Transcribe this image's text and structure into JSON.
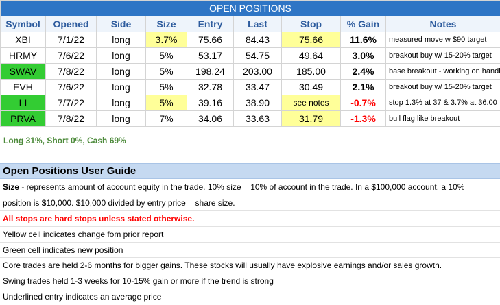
{
  "title": "OPEN POSITIONS",
  "headers": [
    "Symbol",
    "Opened",
    "Side",
    "Size",
    "Entry",
    "Last",
    "Stop",
    "% Gain",
    "Notes"
  ],
  "rows": [
    {
      "symbol": "XBI",
      "opened": "7/1/22",
      "side": "long",
      "size": "3.7%",
      "entry": "75.66",
      "last": "84.43",
      "stop": "75.66",
      "gain": "11.6%",
      "notes": "measured move w $90 target",
      "symbol_green": false,
      "size_yellow": true,
      "stop_yellow": true,
      "negative": false
    },
    {
      "symbol": "HRMY",
      "opened": "7/6/22",
      "side": "long",
      "size": "5%",
      "entry": "53.17",
      "last": "54.75",
      "stop": "49.64",
      "gain": "3.0%",
      "notes": "breakout buy w/ 15-20% target",
      "symbol_green": false,
      "size_yellow": false,
      "stop_yellow": false,
      "negative": false
    },
    {
      "symbol": "SWAV",
      "opened": "7/8/22",
      "side": "long",
      "size": "5%",
      "entry": "198.24",
      "last": "203.00",
      "stop": "185.00",
      "gain": "2.4%",
      "notes": "base breakout - working on handle",
      "symbol_green": true,
      "size_yellow": false,
      "stop_yellow": false,
      "negative": false
    },
    {
      "symbol": "EVH",
      "opened": "7/6/22",
      "side": "long",
      "size": "5%",
      "entry": "32.78",
      "last": "33.47",
      "stop": "30.49",
      "gain": "2.1%",
      "notes": "breakout buy w/ 15-20% target",
      "symbol_green": false,
      "size_yellow": false,
      "stop_yellow": false,
      "negative": false
    },
    {
      "symbol": "LI",
      "opened": "7/7/22",
      "side": "long",
      "size": "5%",
      "entry": "39.16",
      "last": "38.90",
      "stop": "see notes",
      "gain": "-0.7%",
      "notes": "stop 1.3% at 37 & 3.7% at 36.00",
      "symbol_green": true,
      "size_yellow": true,
      "stop_yellow": true,
      "negative": true
    },
    {
      "symbol": "PRVA",
      "opened": "7/8/22",
      "side": "long",
      "size": "7%",
      "entry": "34.06",
      "last": "33.63",
      "stop": "31.79",
      "gain": "-1.3%",
      "notes": "bull flag like breakout",
      "symbol_green": true,
      "size_yellow": false,
      "stop_yellow": true,
      "negative": true
    }
  ],
  "summary": "Long 31%, Short 0%, Cash 69%",
  "guide": {
    "title": "Open Positions User Guide",
    "size_term": "Size",
    "size_text_1": " - represents amount of account equity in the trade.  10% size = 10% of account in the trade.  In a $100,000 account, a 10%",
    "size_text_2": "position is $10,000.  $10,000 divided by entry price = share size.",
    "stops_note": "All stops are hard stops unless stated otherwise.",
    "lines": [
      "Yellow cell indicates change fom prior report",
      "Green cell indicates new position",
      "Core trades are held 2-6 months for bigger gains.  These stocks will usually have explosive earnings and/or sales growth.",
      "Swing trades held 1-3 weeks for 10-15% gain or more if the trend is strong",
      "Underlined entry indicates an average price"
    ]
  },
  "colors": {
    "header_blue": "#2e75c5",
    "highlight_yellow": "#ffff99",
    "new_green": "#33cc33",
    "loss_red": "#ff0000",
    "summary_green": "#4c8a3a"
  }
}
